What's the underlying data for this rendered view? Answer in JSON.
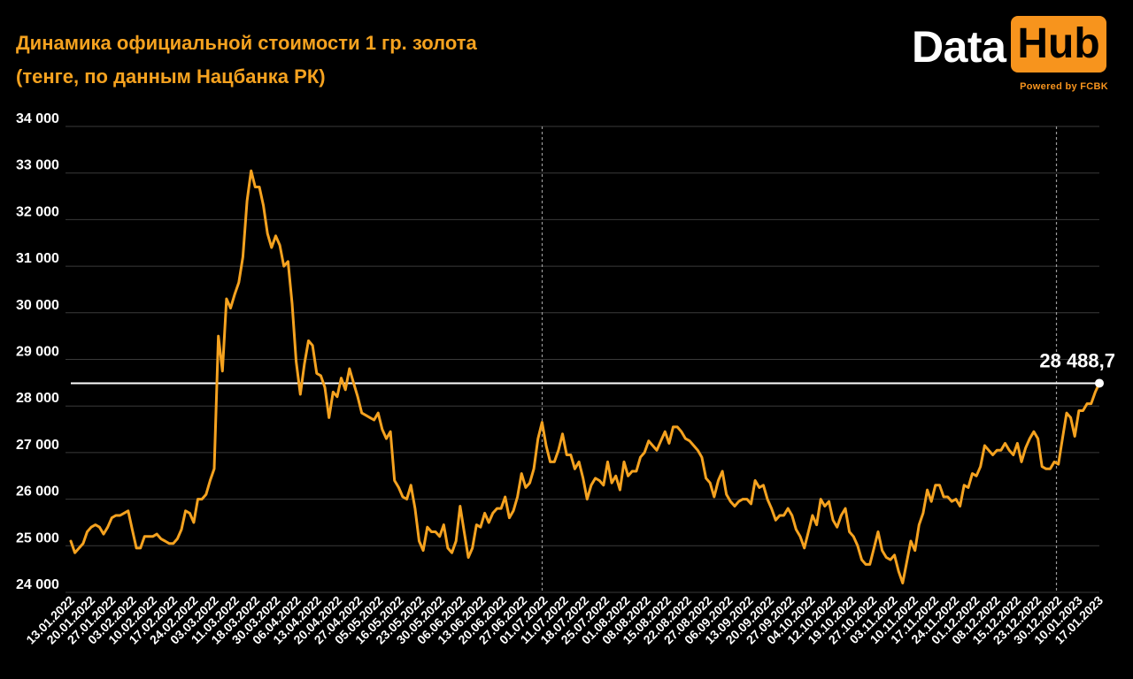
{
  "header": {
    "title_line1": "Динамика официальной стоимости 1 гр. золота",
    "title_line2": "(тенге, по данным Нацбанка РК)"
  },
  "logo": {
    "data_text": "Data",
    "hub_text": "Hub",
    "powered_text": "Powered by FCBK",
    "accent_color": "#f7941d"
  },
  "colors": {
    "background": "#000000",
    "line": "#f5a21f",
    "title": "#f5a21f",
    "grid": "#3a3a3a",
    "reference_line": "#ffffff"
  },
  "chart_data": {
    "type": "line",
    "title": "Динамика официальной стоимости 1 гр. золота (тенге, по данным Нацбанка РК)",
    "xlabel": "",
    "ylabel": "",
    "ylim": [
      24000,
      34000
    ],
    "yticks": [
      24000,
      25000,
      26000,
      27000,
      28000,
      29000,
      30000,
      31000,
      32000,
      33000,
      34000
    ],
    "ytick_labels": [
      "24 000",
      "25 000",
      "26 000",
      "27 000",
      "28 000",
      "29 000",
      "30 000",
      "31 000",
      "32 000",
      "33 000",
      "34 000"
    ],
    "x_tick_labels": [
      "13.01.2022",
      "20.01.2022",
      "27.01.2022",
      "03.02.2022",
      "10.02.2022",
      "17.02.2022",
      "24.02.2022",
      "03.03.2022",
      "11.03.2022",
      "18.03.2022",
      "30.03.2022",
      "06.04.2022",
      "13.04.2022",
      "20.04.2022",
      "27.04.2022",
      "05.05.2022",
      "16.05.2022",
      "23.05.2022",
      "30.05.2022",
      "06.06.2022",
      "13.06.2022",
      "20.06.2022",
      "27.06.2022",
      "01.07.2022",
      "11.07.2022",
      "18.07.2022",
      "25.07.2022",
      "01.08.2022",
      "08.08.2022",
      "15.08.2022",
      "22.08.2022",
      "27.08.2022",
      "06.09.2022",
      "13.09.2022",
      "20.09.2022",
      "27.09.2022",
      "04.10.2022",
      "12.10.2022",
      "19.10.2022",
      "27.10.2022",
      "03.11.2022",
      "10.11.2022",
      "17.11.2022",
      "24.11.2022",
      "01.12.2022",
      "08.12.2022",
      "15.12.2022",
      "23.12.2022",
      "30.12.2022",
      "10.01.2023",
      "17.01.2023"
    ],
    "grid": true,
    "vertical_markers": [
      "01.07.2022",
      "30.12.2022"
    ],
    "reference_line": {
      "value": 28488.7,
      "label": "28 488,7"
    },
    "series": [
      {
        "values": [
          25100,
          24850,
          24950,
          25050,
          25300,
          25400,
          25450,
          25400,
          25250,
          25400,
          25600,
          25650,
          25650,
          25700,
          25750,
          25350,
          24950,
          24950,
          25200,
          25200,
          25200,
          25250,
          25150,
          25100,
          25050,
          25050,
          25150,
          25350,
          25750,
          25700,
          25500,
          26000,
          26000,
          26100,
          26400,
          26650,
          29500,
          28750,
          30300,
          30100,
          30400,
          30650,
          31200,
          32400,
          33050,
          32700,
          32700,
          32300,
          31700,
          31400,
          31650,
          31450,
          31000,
          31100,
          30200,
          28950,
          28250,
          28900,
          29400,
          29300,
          28700,
          28650,
          28400,
          27750,
          28300,
          28200,
          28600,
          28350,
          28800,
          28500,
          28200,
          27850,
          27800,
          27750,
          27700,
          27850,
          27500,
          27300,
          27450,
          26400,
          26250,
          26050,
          26000,
          26300,
          25800,
          25100,
          24900,
          25400,
          25300,
          25300,
          25200,
          25450,
          24950,
          24850,
          25100,
          25850,
          25300,
          24750,
          24950,
          25450,
          25400,
          25700,
          25500,
          25700,
          25800,
          25800,
          26050,
          25600,
          25750,
          26050,
          26550,
          26250,
          26350,
          26650,
          27300,
          27650,
          27150,
          26800,
          26800,
          27050,
          27400,
          26950,
          26950,
          26650,
          26800,
          26450,
          26000,
          26300,
          26450,
          26400,
          26300,
          26800,
          26350,
          26500,
          26200,
          26800,
          26500,
          26600,
          26600,
          26900,
          27000,
          27250,
          27150,
          27050,
          27250,
          27450,
          27200,
          27550,
          27550,
          27450,
          27300,
          27250,
          27150,
          27050,
          26900,
          26450,
          26350,
          26050,
          26400,
          26600,
          26100,
          25950,
          25850,
          25950,
          26000,
          26000,
          25900,
          26400,
          26250,
          26300,
          26000,
          25800,
          25550,
          25650,
          25650,
          25800,
          25650,
          25350,
          25200,
          24950,
          25300,
          25650,
          25450,
          26000,
          25850,
          25950,
          25550,
          25400,
          25650,
          25800,
          25300,
          25200,
          25000,
          24700,
          24600,
          24600,
          24950,
          25300,
          24900,
          24750,
          24700,
          24800,
          24450,
          24200,
          24650,
          25100,
          24900,
          25450,
          25700,
          26200,
          25950,
          26300,
          26300,
          26050,
          26050,
          25950,
          26000,
          25850,
          26300,
          26250,
          26550,
          26500,
          26700,
          27150,
          27050,
          26950,
          27050,
          27050,
          27200,
          27050,
          26950,
          27200,
          26800,
          27100,
          27300,
          27450,
          27300,
          26700,
          26650,
          26650,
          26800,
          26750,
          27300,
          27850,
          27750,
          27350,
          27900,
          27900,
          28050,
          28050,
          28300,
          28488.7
        ]
      }
    ]
  }
}
